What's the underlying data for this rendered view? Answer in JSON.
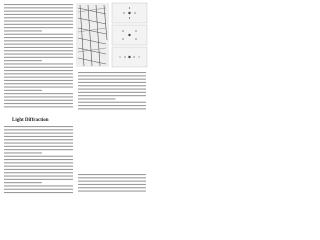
{
  "section": {
    "heading": "Light Diffraction"
  }
}
